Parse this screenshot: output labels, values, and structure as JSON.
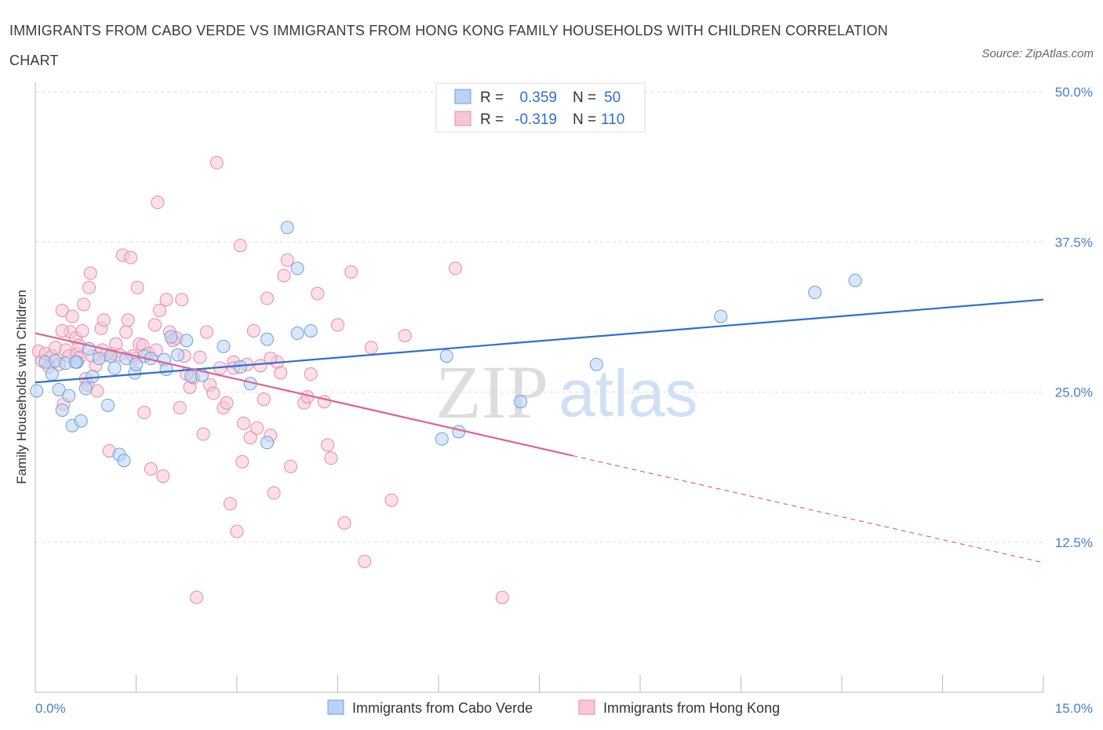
{
  "title": "IMMIGRANTS FROM CABO VERDE VS IMMIGRANTS FROM HONG KONG FAMILY HOUSEHOLDS WITH CHILDREN CORRELATION CHART",
  "source": "Source: ZipAtlas.com",
  "watermark": {
    "part1": "ZIP",
    "part2": "atlas"
  },
  "colors": {
    "blue_fill": "#b8d3f5",
    "blue_stroke": "#6f9fdc",
    "blue_line": "#2f6fd0",
    "pink_fill": "#f8c6d6",
    "pink_stroke": "#e889a8",
    "pink_line": "#e0628e",
    "tick_text": "#4a7fcf",
    "grid": "#dddddd"
  },
  "legend": {
    "rows": [
      {
        "r_label": "R =",
        "r_value": "0.359",
        "n_label": "N =",
        "n_value": "50"
      },
      {
        "r_label": "R =",
        "r_value": "-0.319",
        "n_label": "N =",
        "n_value": "110"
      }
    ]
  },
  "chart_data": {
    "type": "scatter",
    "title": "IMMIGRANTS FROM CABO VERDE VS IMMIGRANTS FROM HONG KONG FAMILY HOUSEHOLDS WITH CHILDREN CORRELATION CHART",
    "xlabel": "",
    "ylabel": "Family Households with Children",
    "xlim": [
      0,
      15
    ],
    "ylim": [
      0,
      50
    ],
    "x_tick_labels": [
      {
        "value": 0,
        "label": "0.0%"
      },
      {
        "value": 15,
        "label": "15.0%"
      }
    ],
    "y_ticks": [
      {
        "value": 12.5,
        "label": "12.5%"
      },
      {
        "value": 25,
        "label": "25.0%"
      },
      {
        "value": 37.5,
        "label": "37.5%"
      },
      {
        "value": 50,
        "label": "50.0%"
      }
    ],
    "series": [
      {
        "name": "Immigrants from Cabo Verde",
        "color": "blue",
        "R": 0.359,
        "N": 50,
        "trend": {
          "x0": 0.0,
          "y0": 25.8,
          "x1": 15.0,
          "y1": 32.7
        },
        "points": [
          [
            0.02,
            25.1
          ],
          [
            0.15,
            27.5
          ],
          [
            0.25,
            26.5
          ],
          [
            0.3,
            27.6
          ],
          [
            0.35,
            25.2
          ],
          [
            0.4,
            23.5
          ],
          [
            0.45,
            27.4
          ],
          [
            0.5,
            24.7
          ],
          [
            0.55,
            22.2
          ],
          [
            0.62,
            27.5
          ],
          [
            0.68,
            22.6
          ],
          [
            0.75,
            25.3
          ],
          [
            0.8,
            28.6
          ],
          [
            0.85,
            26.3
          ],
          [
            0.95,
            27.8
          ],
          [
            1.08,
            23.9
          ],
          [
            1.12,
            28.0
          ],
          [
            1.18,
            27.0
          ],
          [
            1.25,
            19.8
          ],
          [
            1.32,
            19.3
          ],
          [
            1.35,
            27.8
          ],
          [
            1.48,
            26.6
          ],
          [
            1.62,
            28.0
          ],
          [
            1.72,
            27.8
          ],
          [
            1.92,
            27.7
          ],
          [
            1.95,
            26.9
          ],
          [
            2.02,
            29.6
          ],
          [
            2.12,
            28.1
          ],
          [
            2.25,
            29.3
          ],
          [
            2.32,
            26.3
          ],
          [
            2.48,
            26.4
          ],
          [
            2.8,
            28.8
          ],
          [
            3.05,
            27.1
          ],
          [
            3.2,
            25.7
          ],
          [
            3.45,
            29.4
          ],
          [
            3.45,
            20.8
          ],
          [
            3.75,
            38.7
          ],
          [
            3.9,
            35.3
          ],
          [
            3.9,
            29.9
          ],
          [
            4.1,
            30.1
          ],
          [
            6.05,
            21.1
          ],
          [
            6.12,
            28.0
          ],
          [
            6.3,
            21.7
          ],
          [
            7.22,
            24.2
          ],
          [
            8.35,
            27.3
          ],
          [
            10.2,
            31.3
          ],
          [
            11.6,
            33.3
          ],
          [
            12.2,
            34.3
          ],
          [
            0.6,
            27.5
          ],
          [
            1.5,
            27.3
          ]
        ]
      },
      {
        "name": "Immigrants from Hong Kong",
        "color": "pink",
        "R": -0.319,
        "N": 110,
        "trend": {
          "x0": 0.0,
          "y0": 29.9,
          "x1": 8.0,
          "y1": 19.7,
          "dash_x1": 15.0,
          "dash_y1": 10.8
        },
        "points": [
          [
            0.05,
            28.4
          ],
          [
            0.1,
            27.6
          ],
          [
            0.15,
            28.2
          ],
          [
            0.2,
            27.1
          ],
          [
            0.25,
            28.0
          ],
          [
            0.3,
            28.7
          ],
          [
            0.35,
            27.3
          ],
          [
            0.4,
            31.8
          ],
          [
            0.42,
            24.0
          ],
          [
            0.45,
            28.5
          ],
          [
            0.5,
            28.0
          ],
          [
            0.52,
            30.0
          ],
          [
            0.55,
            31.3
          ],
          [
            0.6,
            29.5
          ],
          [
            0.62,
            28.2
          ],
          [
            0.65,
            28.9
          ],
          [
            0.7,
            30.1
          ],
          [
            0.72,
            32.3
          ],
          [
            0.75,
            26.1
          ],
          [
            0.78,
            25.6
          ],
          [
            0.8,
            33.7
          ],
          [
            0.82,
            34.9
          ],
          [
            0.85,
            28.0
          ],
          [
            0.9,
            27.2
          ],
          [
            0.92,
            25.1
          ],
          [
            0.98,
            30.3
          ],
          [
            1.02,
            31.0
          ],
          [
            1.05,
            28.1
          ],
          [
            1.1,
            20.1
          ],
          [
            1.15,
            28.2
          ],
          [
            1.2,
            29.0
          ],
          [
            1.25,
            28.1
          ],
          [
            1.3,
            36.4
          ],
          [
            1.35,
            30.0
          ],
          [
            1.38,
            31.0
          ],
          [
            1.42,
            36.2
          ],
          [
            1.48,
            27.8
          ],
          [
            1.52,
            33.7
          ],
          [
            1.55,
            29.0
          ],
          [
            1.6,
            28.9
          ],
          [
            1.62,
            23.3
          ],
          [
            1.68,
            28.2
          ],
          [
            1.72,
            18.6
          ],
          [
            1.78,
            30.6
          ],
          [
            1.82,
            40.8
          ],
          [
            1.85,
            31.8
          ],
          [
            1.9,
            18.0
          ],
          [
            1.95,
            32.7
          ],
          [
            2.0,
            30.0
          ],
          [
            2.05,
            29.3
          ],
          [
            2.1,
            29.5
          ],
          [
            2.15,
            23.7
          ],
          [
            2.18,
            32.7
          ],
          [
            2.22,
            28.0
          ],
          [
            2.3,
            25.4
          ],
          [
            2.35,
            26.2
          ],
          [
            2.4,
            7.9
          ],
          [
            2.45,
            27.9
          ],
          [
            2.5,
            21.5
          ],
          [
            2.55,
            30.0
          ],
          [
            2.6,
            25.6
          ],
          [
            2.65,
            24.9
          ],
          [
            2.7,
            44.1
          ],
          [
            2.75,
            27.0
          ],
          [
            2.8,
            23.7
          ],
          [
            2.85,
            24.1
          ],
          [
            2.9,
            15.7
          ],
          [
            2.95,
            27.5
          ],
          [
            3.0,
            13.4
          ],
          [
            3.05,
            37.2
          ],
          [
            3.08,
            19.2
          ],
          [
            3.1,
            22.4
          ],
          [
            3.15,
            27.3
          ],
          [
            3.2,
            21.2
          ],
          [
            3.25,
            30.1
          ],
          [
            3.3,
            22.0
          ],
          [
            3.35,
            27.2
          ],
          [
            3.4,
            24.4
          ],
          [
            3.45,
            32.8
          ],
          [
            3.5,
            21.4
          ],
          [
            3.55,
            16.6
          ],
          [
            3.6,
            27.5
          ],
          [
            3.65,
            26.6
          ],
          [
            3.7,
            34.7
          ],
          [
            3.75,
            36.0
          ],
          [
            3.8,
            18.8
          ],
          [
            4.0,
            24.1
          ],
          [
            4.05,
            24.6
          ],
          [
            4.1,
            26.5
          ],
          [
            4.2,
            33.2
          ],
          [
            4.3,
            24.2
          ],
          [
            4.35,
            20.6
          ],
          [
            4.4,
            19.5
          ],
          [
            4.5,
            30.6
          ],
          [
            4.6,
            14.1
          ],
          [
            4.7,
            35.0
          ],
          [
            4.9,
            10.9
          ],
          [
            5.0,
            28.7
          ],
          [
            5.3,
            16.0
          ],
          [
            5.5,
            29.7
          ],
          [
            6.25,
            35.3
          ],
          [
            6.95,
            7.9
          ],
          [
            1.0,
            28.5
          ],
          [
            2.25,
            26.5
          ],
          [
            0.4,
            30.1
          ],
          [
            1.8,
            28.5
          ],
          [
            2.95,
            27.0
          ],
          [
            3.5,
            27.8
          ],
          [
            1.45,
            28.0
          ],
          [
            0.65,
            27.8
          ]
        ]
      }
    ]
  },
  "bottom_legend": [
    {
      "label": "Immigrants from Cabo Verde"
    },
    {
      "label": "Immigrants from Hong Kong"
    }
  ]
}
